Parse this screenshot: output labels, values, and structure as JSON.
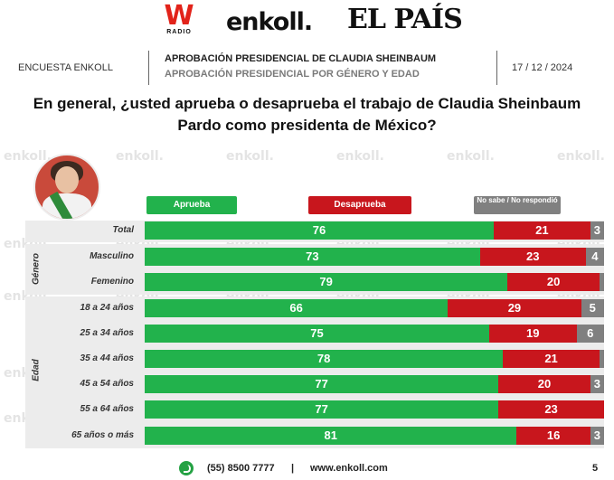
{
  "logos": {
    "w_mark": "W",
    "w_radio": "RADIO",
    "enkoll": "enkoll.",
    "elpais": "EL PAÍS"
  },
  "header": {
    "survey_label": "ENCUESTA ENKOLL",
    "title": "APROBACIÓN PRESIDENCIAL DE CLAUDIA SHEINBAUM",
    "subtitle": "APROBACIÓN PRESIDENCIAL POR GÉNERO Y EDAD",
    "date": "17 / 12 / 2024"
  },
  "question": {
    "line1": "En general, ¿usted aprueba o desaprueba el trabajo de Claudia Sheinbaum",
    "line2": "Pardo como presidenta de México?"
  },
  "watermark": "enkoll.",
  "colors": {
    "aprueba": "#22b24c",
    "desaprueba": "#c8161d",
    "nosabe": "#808080"
  },
  "chart_data": {
    "type": "bar",
    "stacked": true,
    "orientation": "horizontal",
    "legend": [
      "Aprueba",
      "Desaprueba",
      "No sabe / No respondió"
    ],
    "groups": [
      {
        "label": "",
        "rows": [
          "Total"
        ]
      },
      {
        "label": "Género",
        "rows": [
          "Masculino",
          "Femenino"
        ]
      },
      {
        "label": "Edad",
        "rows": [
          "18 a 24 años",
          "25 a 34 años",
          "35 a 44 años",
          "45 a 54 años",
          "55 a 64 años",
          "65 años o más"
        ]
      }
    ],
    "categories": [
      "Total",
      "Masculino",
      "Femenino",
      "18 a 24 años",
      "25 a 34 años",
      "35 a 44 años",
      "45 a 54 años",
      "55 a 64 años",
      "65 años o más"
    ],
    "series": [
      {
        "name": "Aprueba",
        "values": [
          76,
          73,
          79,
          66,
          75,
          78,
          77,
          77,
          81
        ]
      },
      {
        "name": "Desaprueba",
        "values": [
          21,
          23,
          20,
          29,
          19,
          21,
          20,
          23,
          16
        ]
      },
      {
        "name": "No sabe / No respondió",
        "values": [
          3,
          4,
          1,
          5,
          6,
          1,
          3,
          0,
          3
        ]
      }
    ]
  },
  "footer": {
    "phone": "(55) 8500 7777",
    "separator": "|",
    "website": "www.enkoll.com",
    "page": "5"
  }
}
